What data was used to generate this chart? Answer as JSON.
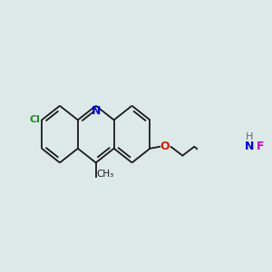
{
  "bg_color": "#dde8e8",
  "bond_color": "#1a1a1a",
  "cl_color": "#228B22",
  "n_color": "#0000cc",
  "o_color": "#cc2200",
  "f_color": "#cc00bb",
  "h_color": "#666666",
  "line_width": 1.3,
  "figsize": [
    3.0,
    3.0
  ],
  "dpi": 100,
  "xlim": [
    0,
    300
  ],
  "ylim": [
    0,
    300
  ]
}
